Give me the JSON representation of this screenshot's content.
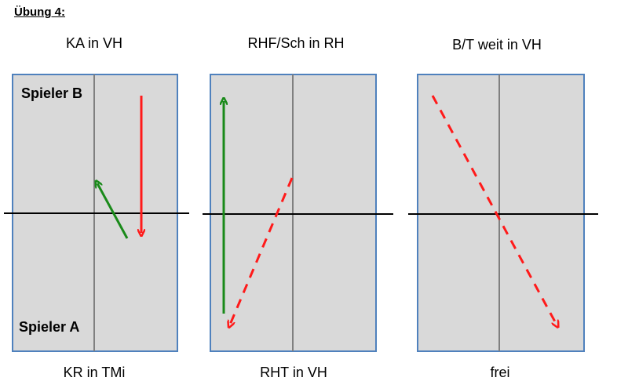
{
  "title": "Übung 4:",
  "panels": [
    {
      "top_label": "KA in VH",
      "bottom_label": "KR in TMi"
    },
    {
      "top_label": "RHF/Sch in RH",
      "bottom_label": "RHT in VH"
    },
    {
      "top_label": "B/T weit in VH",
      "bottom_label": "frei"
    }
  ],
  "players": {
    "top": "Spieler B",
    "bottom": "Spieler A"
  },
  "colors": {
    "table_fill": "#d9d9d9",
    "table_border": "#4f81bd",
    "green_arrow": "#1a8a1a",
    "red_arrow": "#ff1a1a"
  }
}
